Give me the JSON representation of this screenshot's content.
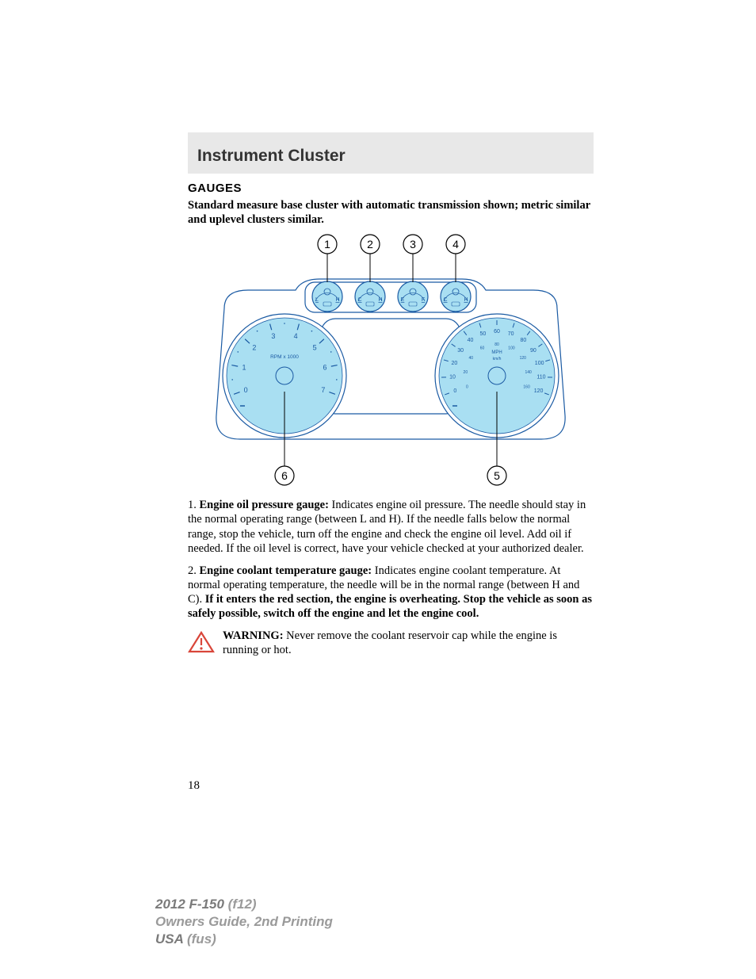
{
  "header": {
    "title": "Instrument Cluster"
  },
  "section": {
    "heading": "GAUGES"
  },
  "intro": "Standard measure base cluster with automatic transmission shown; metric similar and uplevel clusters similar.",
  "diagram": {
    "callouts": [
      "1",
      "2",
      "3",
      "4",
      "5",
      "6"
    ],
    "callout_stroke": "#000000",
    "callout_radius": 12,
    "callout_fontsize": 14,
    "panel_fill": "#a9dff2",
    "panel_stroke": "#1a5aa3",
    "panel_border_width": 1.2,
    "mini_gauges": [
      {
        "left": "L",
        "right": "H",
        "icon": "oil"
      },
      {
        "left": "C",
        "right": "H",
        "icon": "temp"
      },
      {
        "left": "E",
        "right": "F",
        "icon": "fuel"
      },
      {
        "left": "C",
        "right": "H",
        "icon": "trans"
      }
    ],
    "tach": {
      "label": "RPM x 1000",
      "ticks": [
        "0",
        "1",
        "2",
        "3",
        "4",
        "5",
        "6",
        "7"
      ]
    },
    "speedo": {
      "unit_top": "MPH",
      "unit_bottom": "km/h",
      "outer": [
        "0",
        "10",
        "20",
        "30",
        "40",
        "50",
        "60",
        "70",
        "80",
        "90",
        "100",
        "110",
        "120"
      ],
      "inner": [
        "0",
        "20",
        "40",
        "60",
        "80",
        "100",
        "120",
        "140",
        "160"
      ]
    }
  },
  "items": [
    {
      "num": "1",
      "label": "Engine oil pressure gauge:",
      "text": " Indicates engine oil pressure. The needle should stay in the normal operating range (between L and H). If the needle falls below the normal range, stop the vehicle, turn off the engine and check the engine oil level. Add oil if needed. If the oil level is correct, have your vehicle checked at your authorized dealer."
    },
    {
      "num": "2",
      "label": "Engine coolant temperature gauge:",
      "text": " Indicates engine coolant temperature. At normal operating temperature, the needle will be in the normal range (between H and C). ",
      "bold_tail": "If it enters the red section, the engine is overheating. Stop the vehicle as soon as safely possible, switch off the engine and let the engine cool."
    }
  ],
  "warning": {
    "label": "WARNING:",
    "text": " Never remove the coolant reservoir cap while the engine is running or hot.",
    "icon_stroke": "#d9463a",
    "icon_width": 2.2
  },
  "page_number": "18",
  "footer": {
    "line1_bold": "2012 F-150",
    "line1_rest": " (f12)",
    "line2": "Owners Guide, 2nd Printing",
    "line3_bold": "USA",
    "line3_rest": " (fus)"
  }
}
